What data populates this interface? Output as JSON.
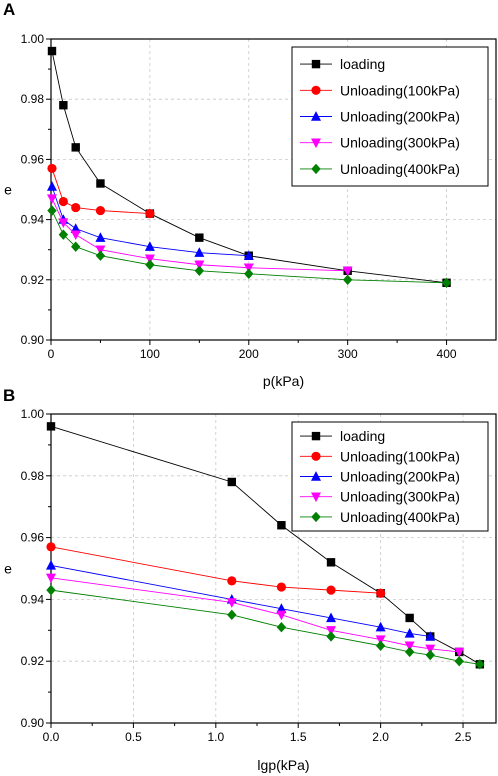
{
  "chart_data": [
    {
      "panel": "A",
      "type": "line",
      "xlabel": "p(kPa)",
      "ylabel": "e",
      "xlim": [
        0,
        450
      ],
      "ylim": [
        0.9,
        1.0
      ],
      "xticks": [
        0,
        100,
        200,
        300,
        400
      ],
      "xtick_labels": [
        "0",
        "100",
        "200",
        "300",
        "400"
      ],
      "yticks": [
        0.9,
        0.92,
        0.94,
        0.96,
        0.98,
        1.0
      ],
      "ytick_labels": [
        "0.90",
        "0.92",
        "0.94",
        "0.96",
        "0.98",
        "1.00"
      ],
      "grid": true,
      "legend_position": "top-right",
      "series": [
        {
          "name": "loading",
          "color": "#000000",
          "marker": "square",
          "x": [
            1,
            12.5,
            25,
            50,
            100,
            150,
            200,
            300,
            400
          ],
          "y": [
            0.996,
            0.978,
            0.964,
            0.952,
            0.942,
            0.934,
            0.928,
            0.923,
            0.919
          ]
        },
        {
          "name": "Unloading(100kPa)",
          "color": "#ff0000",
          "marker": "circle",
          "x": [
            1,
            12.5,
            25,
            50,
            100
          ],
          "y": [
            0.957,
            0.946,
            0.944,
            0.943,
            0.942
          ]
        },
        {
          "name": "Unloading(200kPa)",
          "color": "#0000ff",
          "marker": "triangle-up",
          "x": [
            1,
            12.5,
            25,
            50,
            100,
            150,
            200
          ],
          "y": [
            0.951,
            0.94,
            0.937,
            0.934,
            0.931,
            0.929,
            0.928
          ]
        },
        {
          "name": "Unloading(300kPa)",
          "color": "#ff00ff",
          "marker": "triangle-down",
          "x": [
            1,
            12.5,
            25,
            50,
            100,
            150,
            200,
            300
          ],
          "y": [
            0.947,
            0.939,
            0.935,
            0.93,
            0.927,
            0.925,
            0.924,
            0.923
          ]
        },
        {
          "name": "Unloading(400kPa)",
          "color": "#008000",
          "marker": "diamond",
          "x": [
            1,
            12.5,
            25,
            50,
            100,
            150,
            200,
            300,
            400
          ],
          "y": [
            0.943,
            0.935,
            0.931,
            0.928,
            0.925,
            0.923,
            0.922,
            0.92,
            0.919
          ]
        }
      ]
    },
    {
      "panel": "B",
      "type": "line",
      "xlabel": "lgp(kPa)",
      "ylabel": "e",
      "xlim": [
        0,
        2.7
      ],
      "ylim": [
        0.9,
        1.0
      ],
      "xticks": [
        0,
        0.5,
        1.0,
        1.5,
        2.0,
        2.5
      ],
      "xtick_labels": [
        "0.0",
        "0.5",
        "1.0",
        "1.5",
        "2.0",
        "2.5"
      ],
      "yticks": [
        0.9,
        0.92,
        0.94,
        0.96,
        0.98,
        1.0
      ],
      "ytick_labels": [
        "0.90",
        "0.92",
        "0.94",
        "0.96",
        "0.98",
        "1.00"
      ],
      "grid": true,
      "legend_position": "top-right",
      "series": [
        {
          "name": "loading",
          "color": "#000000",
          "marker": "square",
          "x": [
            0,
            1.097,
            1.398,
            1.699,
            2.0,
            2.176,
            2.301,
            2.477,
            2.602
          ],
          "y": [
            0.996,
            0.978,
            0.964,
            0.952,
            0.942,
            0.934,
            0.928,
            0.923,
            0.919
          ]
        },
        {
          "name": "Unloading(100kPa)",
          "color": "#ff0000",
          "marker": "circle",
          "x": [
            0,
            1.097,
            1.398,
            1.699,
            2.0
          ],
          "y": [
            0.957,
            0.946,
            0.944,
            0.943,
            0.942
          ]
        },
        {
          "name": "Unloading(200kPa)",
          "color": "#0000ff",
          "marker": "triangle-up",
          "x": [
            0,
            1.097,
            1.398,
            1.699,
            2.0,
            2.176,
            2.301
          ],
          "y": [
            0.951,
            0.94,
            0.937,
            0.934,
            0.931,
            0.929,
            0.928
          ]
        },
        {
          "name": "Unloading(300kPa)",
          "color": "#ff00ff",
          "marker": "triangle-down",
          "x": [
            0,
            1.097,
            1.398,
            1.699,
            2.0,
            2.176,
            2.301,
            2.477
          ],
          "y": [
            0.947,
            0.939,
            0.935,
            0.93,
            0.927,
            0.925,
            0.924,
            0.923
          ]
        },
        {
          "name": "Unloading(400kPa)",
          "color": "#008000",
          "marker": "diamond",
          "x": [
            0,
            1.097,
            1.398,
            1.699,
            2.0,
            2.176,
            2.301,
            2.477,
            2.602
          ],
          "y": [
            0.943,
            0.935,
            0.931,
            0.928,
            0.925,
            0.923,
            0.922,
            0.92,
            0.919
          ]
        }
      ]
    }
  ]
}
